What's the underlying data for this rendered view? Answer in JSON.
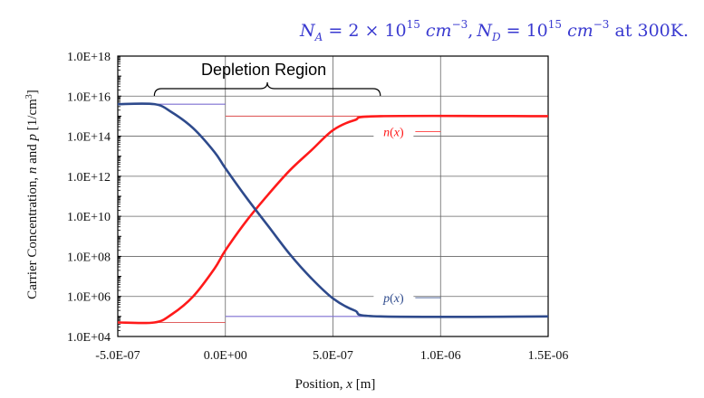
{
  "header": {
    "na_symbol": "N",
    "na_sub": "A",
    "na_value": " = 2 × 10",
    "na_exp": "15",
    "na_unit": " cm",
    "na_unit_exp": "−3",
    "sep": ",",
    "nd_symbol": "N",
    "nd_sub": "D",
    "nd_value": " = 10",
    "nd_exp": "15",
    "nd_unit": " cm",
    "nd_unit_exp": "−3",
    "suffix": " at 300K."
  },
  "annotation": "Depletion Region",
  "colors": {
    "n_curve": "#ff1a1a",
    "p_curve": "#2e4a8c",
    "n_flat": "#e06060",
    "p_flat": "#7d6fd0",
    "grid": "#666666"
  },
  "chart_data": {
    "type": "line",
    "xlabel_parts": [
      "Position, ",
      "x",
      " [m]"
    ],
    "ylabel_parts": [
      "Carrier Concentration, ",
      "n",
      " and ",
      "p",
      " [1/cm",
      "3",
      "]"
    ],
    "xlim": [
      -5e-07,
      1.5e-06
    ],
    "ylim_log10": [
      4,
      18
    ],
    "x_scale": "linear",
    "y_scale": "log",
    "x_ticks": [
      -5e-07,
      0,
      5e-07,
      1e-06,
      1.5e-06
    ],
    "x_tick_labels": [
      "-5.0E-07",
      "0.0E+00",
      "5.0E-07",
      "1.0E-06",
      "1.5E-06"
    ],
    "y_ticks_log10": [
      4,
      6,
      8,
      10,
      12,
      14,
      16,
      18
    ],
    "y_tick_labels": [
      "1.0E+04",
      "1.0E+06",
      "1.0E+08",
      "1.0E+10",
      "1.0E+12",
      "1.0E+14",
      "1.0E+16",
      "1.0E+18"
    ],
    "grid": true,
    "depletion_region": {
      "x_start": -3.3e-07,
      "x_end": 7.2e-07
    },
    "series": [
      {
        "name": "n(x)",
        "label_parts": [
          "n",
          "(",
          "x",
          ")"
        ],
        "label_at": {
          "x": 7.9e-07,
          "log10": 14.1
        },
        "points": [
          [
            -5e-07,
            4.7
          ],
          [
            -3.3e-07,
            4.7
          ],
          [
            -2.5e-07,
            5.1
          ],
          [
            -1.5e-07,
            6.0
          ],
          [
            -5e-08,
            7.4
          ],
          [
            0,
            8.3
          ],
          [
            1e-07,
            9.8
          ],
          [
            2e-07,
            11.1
          ],
          [
            3e-07,
            12.3
          ],
          [
            4e-07,
            13.3
          ],
          [
            5e-07,
            14.3
          ],
          [
            6e-07,
            14.8
          ],
          [
            7.2e-07,
            15.0
          ],
          [
            1.5e-06,
            15.0
          ]
        ],
        "flat_segments": [
          [
            -5e-07,
            0,
            4.7
          ],
          [
            0,
            7.2e-07,
            15.0
          ]
        ]
      },
      {
        "name": "p(x)",
        "label_parts": [
          "p",
          "(",
          "x",
          ")"
        ],
        "label_at": {
          "x": 7.9e-07,
          "log10": 5.8
        },
        "points": [
          [
            -5e-07,
            15.6
          ],
          [
            -3.3e-07,
            15.6
          ],
          [
            -2.5e-07,
            15.2
          ],
          [
            -1.5e-07,
            14.4
          ],
          [
            -5e-08,
            13.2
          ],
          [
            0,
            12.4
          ],
          [
            1e-07,
            10.9
          ],
          [
            2e-07,
            9.5
          ],
          [
            3e-07,
            8.1
          ],
          [
            4e-07,
            6.9
          ],
          [
            5e-07,
            5.9
          ],
          [
            6e-07,
            5.3
          ],
          [
            7.2e-07,
            5.0
          ],
          [
            1.5e-06,
            5.0
          ]
        ],
        "flat_segments": [
          [
            -5e-07,
            0,
            15.6
          ],
          [
            0,
            7.2e-07,
            5.0
          ]
        ]
      }
    ]
  }
}
